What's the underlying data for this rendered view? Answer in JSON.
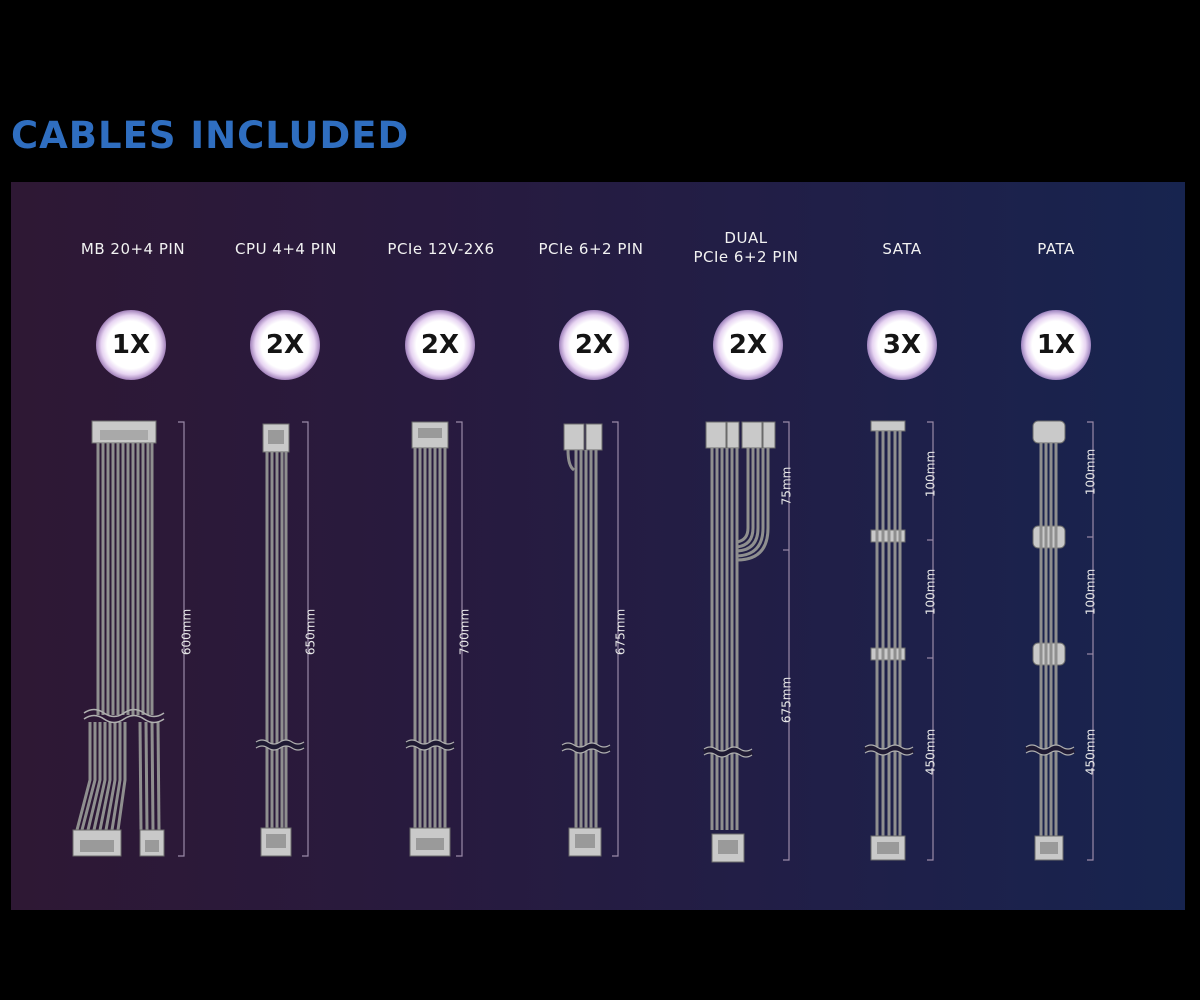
{
  "title": "CABLES INCLUDED",
  "colors": {
    "title": "#2f6ec0",
    "panel_left": "#2e1834",
    "panel_right": "#17244f",
    "cable": "#8f8f8f",
    "connector": "#c9c9c9",
    "dimension_line": "#9a8aa8"
  },
  "cables": [
    {
      "label_lines": [
        "MB 20+4 PIN"
      ],
      "quantity": "1X",
      "lengths": [
        "600mm"
      ]
    },
    {
      "label_lines": [
        "CPU 4+4 PIN"
      ],
      "quantity": "2X",
      "lengths": [
        "650mm"
      ]
    },
    {
      "label_lines": [
        "PCIe 12V-2X6"
      ],
      "quantity": "2X",
      "lengths": [
        "700mm"
      ]
    },
    {
      "label_lines": [
        "PCIe 6+2 PIN"
      ],
      "quantity": "2X",
      "lengths": [
        "675mm"
      ]
    },
    {
      "label_lines": [
        "DUAL",
        "PCIe 6+2 PIN"
      ],
      "quantity": "2X",
      "lengths": [
        "75mm",
        "675mm"
      ]
    },
    {
      "label_lines": [
        "SATA"
      ],
      "quantity": "3X",
      "lengths": [
        "100mm",
        "100mm",
        "450mm"
      ]
    },
    {
      "label_lines": [
        "PATA"
      ],
      "quantity": "1X",
      "lengths": [
        "100mm",
        "100mm",
        "450mm"
      ]
    }
  ]
}
